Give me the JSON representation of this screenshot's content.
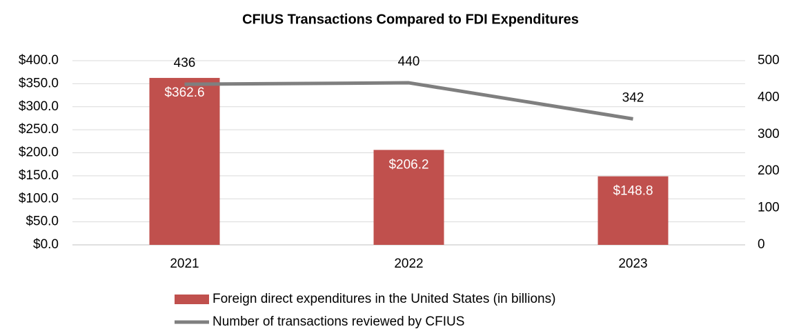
{
  "chart_data": {
    "type": "bar_line",
    "title": "CFIUS Transactions Compared to FDI Expenditures",
    "categories": [
      "2021",
      "2022",
      "2023"
    ],
    "series": [
      {
        "name": "Foreign direct expenditures in the United States (in billions)",
        "type": "bar",
        "color": "#c0504d",
        "axis": "y",
        "values": [
          362.6,
          206.2,
          148.8
        ],
        "value_labels": [
          "$362.6",
          "$206.2",
          "$148.8"
        ]
      },
      {
        "name": "Number of transactions reviewed by CFIUS",
        "type": "line",
        "color": "#7f7f7f",
        "axis": "y2",
        "values": [
          436,
          440,
          342
        ]
      }
    ],
    "ylim": [
      0,
      400
    ],
    "yticks": [
      {
        "value": 0,
        "label": "$0.0"
      },
      {
        "value": 50,
        "label": "$50.0"
      },
      {
        "value": 100,
        "label": "$100.0"
      },
      {
        "value": 150,
        "label": "$150.0"
      },
      {
        "value": 200,
        "label": "$200.0"
      },
      {
        "value": 250,
        "label": "$250.0"
      },
      {
        "value": 300,
        "label": "$300.0"
      },
      {
        "value": 350,
        "label": "$350.0"
      },
      {
        "value": 400,
        "label": "$400.0"
      }
    ],
    "y2lim": [
      0,
      500
    ],
    "y2ticks": [
      0,
      100,
      200,
      300,
      400,
      500
    ],
    "grid": true,
    "legend": "bottom"
  }
}
